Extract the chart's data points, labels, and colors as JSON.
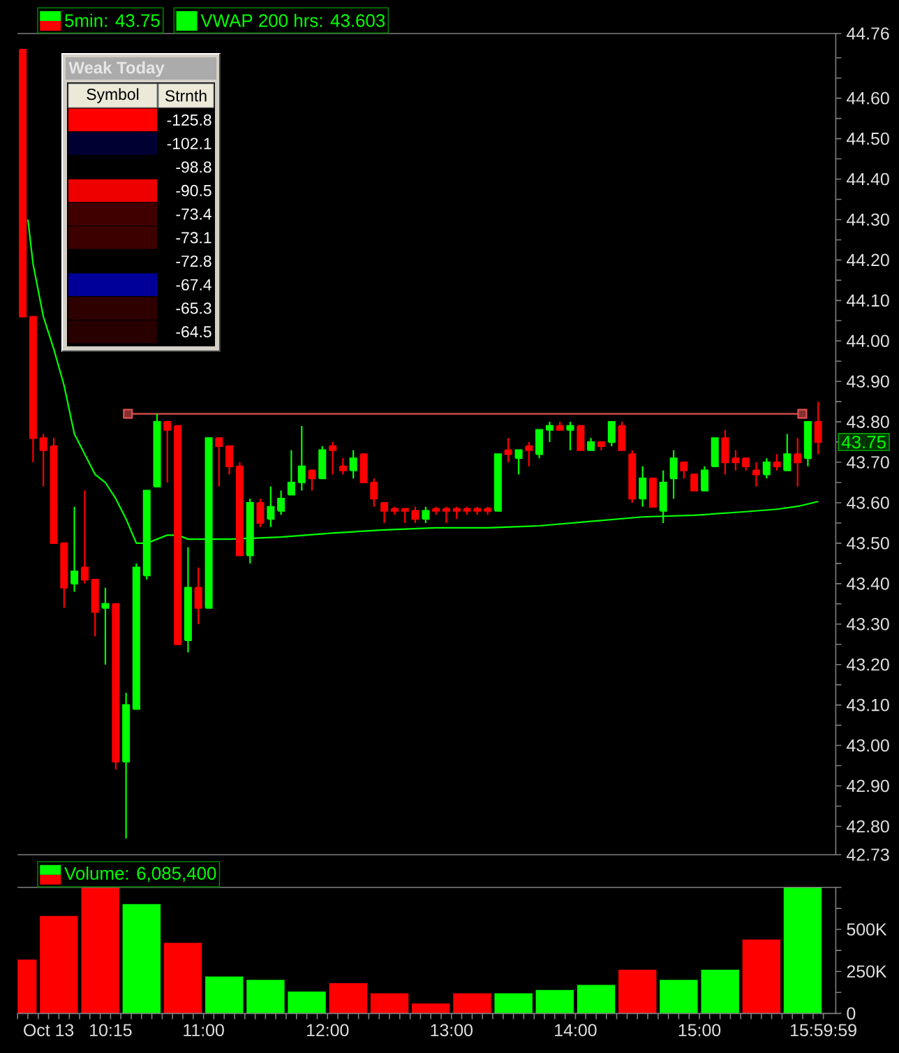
{
  "chart_data": [
    {
      "type": "candlestick",
      "series": [
        {
          "name": "5min: 43.75",
          "ohlc": [
            [
              44.72,
              44.72,
              44.06,
              44.06
            ],
            [
              44.06,
              44.06,
              43.7,
              43.76
            ],
            [
              43.76,
              43.77,
              43.64,
              43.73
            ],
            [
              43.74,
              43.76,
              43.5,
              43.5
            ],
            [
              43.5,
              43.5,
              43.34,
              43.39
            ],
            [
              43.4,
              43.59,
              43.38,
              43.43
            ],
            [
              43.44,
              43.63,
              43.4,
              43.41
            ],
            [
              43.41,
              43.41,
              43.27,
              43.33
            ],
            [
              43.34,
              43.39,
              43.2,
              43.35
            ],
            [
              43.35,
              43.35,
              42.94,
              42.96
            ],
            [
              42.96,
              43.13,
              42.77,
              43.1
            ],
            [
              43.09,
              43.45,
              43.09,
              43.44
            ],
            [
              43.42,
              43.63,
              43.41,
              43.63
            ],
            [
              43.64,
              43.82,
              43.64,
              43.8
            ],
            [
              43.8,
              43.8,
              43.65,
              43.78
            ],
            [
              43.79,
              43.79,
              43.25,
              43.25
            ],
            [
              43.26,
              43.49,
              43.23,
              43.39
            ],
            [
              43.39,
              43.44,
              43.3,
              43.34
            ],
            [
              43.34,
              43.76,
              43.34,
              43.76
            ],
            [
              43.76,
              43.76,
              43.64,
              43.74
            ],
            [
              43.74,
              43.74,
              43.67,
              43.69
            ],
            [
              43.69,
              43.7,
              43.47,
              43.47
            ],
            [
              43.47,
              43.61,
              43.45,
              43.6
            ],
            [
              43.6,
              43.61,
              43.54,
              43.55
            ],
            [
              43.56,
              43.64,
              43.54,
              43.59
            ],
            [
              43.58,
              43.63,
              43.57,
              43.61
            ],
            [
              43.62,
              43.73,
              43.62,
              43.65
            ],
            [
              43.65,
              43.79,
              43.63,
              43.69
            ],
            [
              43.68,
              43.68,
              43.63,
              43.66
            ],
            [
              43.66,
              43.74,
              43.66,
              43.73
            ],
            [
              43.74,
              43.75,
              43.67,
              43.73
            ],
            [
              43.69,
              43.71,
              43.67,
              43.68
            ],
            [
              43.68,
              43.73,
              43.66,
              43.71
            ],
            [
              43.72,
              43.72,
              43.65,
              43.65
            ],
            [
              43.65,
              43.66,
              43.59,
              43.61
            ],
            [
              43.6,
              43.6,
              43.55,
              43.58
            ],
            [
              43.585,
              43.59,
              43.57,
              43.58
            ],
            [
              43.585,
              43.585,
              43.55,
              43.58
            ],
            [
              43.58,
              43.59,
              43.55,
              43.56
            ],
            [
              43.56,
              43.59,
              43.55,
              43.58
            ],
            [
              43.585,
              43.59,
              43.57,
              43.58
            ],
            [
              43.585,
              43.59,
              43.55,
              43.58
            ],
            [
              43.585,
              43.59,
              43.56,
              43.58
            ],
            [
              43.585,
              43.59,
              43.57,
              43.58
            ],
            [
              43.585,
              43.59,
              43.57,
              43.58
            ],
            [
              43.585,
              43.59,
              43.57,
              43.58
            ],
            [
              43.58,
              43.72,
              43.58,
              43.72
            ],
            [
              43.73,
              43.76,
              43.7,
              43.72
            ],
            [
              43.71,
              43.73,
              43.67,
              43.73
            ],
            [
              43.74,
              43.75,
              43.69,
              43.73
            ],
            [
              43.72,
              43.78,
              43.71,
              43.78
            ],
            [
              43.78,
              43.8,
              43.75,
              43.79
            ],
            [
              43.79,
              43.8,
              43.78,
              43.78
            ],
            [
              43.78,
              43.8,
              43.73,
              43.79
            ],
            [
              43.79,
              43.79,
              43.73,
              43.73
            ],
            [
              43.73,
              43.76,
              43.73,
              43.75
            ],
            [
              43.75,
              43.75,
              43.73,
              43.74
            ],
            [
              43.75,
              43.8,
              43.74,
              43.8
            ],
            [
              43.79,
              43.8,
              43.73,
              43.73
            ],
            [
              43.72,
              43.73,
              43.6,
              43.61
            ],
            [
              43.61,
              43.69,
              43.59,
              43.66
            ],
            [
              43.66,
              43.66,
              43.59,
              43.59
            ],
            [
              43.58,
              43.68,
              43.55,
              43.65
            ],
            [
              43.66,
              43.73,
              43.61,
              43.71
            ],
            [
              43.7,
              43.7,
              43.66,
              43.68
            ],
            [
              43.67,
              43.67,
              43.63,
              43.63
            ],
            [
              43.63,
              43.69,
              43.63,
              43.68
            ],
            [
              43.69,
              43.76,
              43.69,
              43.76
            ],
            [
              43.76,
              43.78,
              43.67,
              43.7
            ],
            [
              43.71,
              43.73,
              43.68,
              43.7
            ],
            [
              43.71,
              43.71,
              43.68,
              43.69
            ],
            [
              43.68,
              43.7,
              43.64,
              43.67
            ],
            [
              43.67,
              43.71,
              43.66,
              43.7
            ],
            [
              43.7,
              43.72,
              43.68,
              43.69
            ],
            [
              43.68,
              43.77,
              43.68,
              43.72
            ],
            [
              43.72,
              43.76,
              43.64,
              43.7
            ],
            [
              43.71,
              43.8,
              43.69,
              43.8
            ],
            [
              43.8,
              43.85,
              43.72,
              43.75
            ]
          ],
          "colors": [
            "#ff0000",
            "#ff0000",
            "#ff0000",
            "#ff0000",
            "#ff0000",
            "#00ff00",
            "#ff0000",
            "#ff0000",
            "#00ff00",
            "#ff0000",
            "#00ff00",
            "#00ff00",
            "#00ff00",
            "#00ff00",
            "#ff0000",
            "#ff0000",
            "#00ff00",
            "#ff0000",
            "#00ff00",
            "#ff0000",
            "#ff0000",
            "#ff0000",
            "#00ff00",
            "#ff0000",
            "#00ff00",
            "#00ff00",
            "#00ff00",
            "#00ff00",
            "#ff0000",
            "#00ff00",
            "#ff0000",
            "#ff0000",
            "#00ff00",
            "#ff0000",
            "#ff0000",
            "#ff0000",
            "#ff0000",
            "#ff0000",
            "#ff0000",
            "#00ff00",
            "#ff0000",
            "#ff0000",
            "#ff0000",
            "#ff0000",
            "#ff0000",
            "#ff0000",
            "#00ff00",
            "#ff0000",
            "#00ff00",
            "#ff0000",
            "#00ff00",
            "#00ff00",
            "#ff0000",
            "#00ff00",
            "#ff0000",
            "#00ff00",
            "#ff0000",
            "#00ff00",
            "#ff0000",
            "#ff0000",
            "#00ff00",
            "#ff0000",
            "#00ff00",
            "#00ff00",
            "#ff0000",
            "#ff0000",
            "#00ff00",
            "#00ff00",
            "#ff0000",
            "#ff0000",
            "#ff0000",
            "#ff0000",
            "#00ff00",
            "#ff0000",
            "#00ff00",
            "#ff0000",
            "#00ff00",
            "#ff0000"
          ]
        },
        {
          "name": "VWAP 200 hrs: 43.603",
          "type": "line",
          "color": "#00ff00",
          "x": [
            9.583,
            9.625,
            9.708,
            9.792,
            9.875,
            9.958,
            10.042,
            10.125,
            10.208,
            10.292,
            10.375,
            10.458,
            10.542,
            10.625,
            10.708,
            10.792,
            10.875,
            11.208,
            11.625,
            12.042,
            12.458,
            12.875,
            13.292,
            13.708,
            14.125,
            14.542,
            14.958,
            15.375,
            15.625,
            15.792,
            15.958
          ],
          "values": [
            44.3,
            44.19,
            44.06,
            43.98,
            43.89,
            43.77,
            43.72,
            43.67,
            43.65,
            43.61,
            43.56,
            43.5,
            43.5,
            43.51,
            43.52,
            43.52,
            43.51,
            43.51,
            43.515,
            43.525,
            43.533,
            43.538,
            43.538,
            43.543,
            43.554,
            43.565,
            43.569,
            43.578,
            43.584,
            43.591,
            43.603
          ]
        },
        {
          "type": "line",
          "color": "#e05050",
          "marker": "square",
          "x": [
            10.39,
            15.83
          ],
          "values": [
            43.82,
            43.82
          ]
        }
      ],
      "x": [
        9.542,
        9.625,
        9.708,
        9.792,
        9.875,
        9.958,
        10.042,
        10.125,
        10.208,
        10.292,
        10.375,
        10.458,
        10.542,
        10.625,
        10.708,
        10.792,
        10.875,
        10.958,
        11.042,
        11.125,
        11.208,
        11.292,
        11.375,
        11.458,
        11.542,
        11.625,
        11.708,
        11.792,
        11.875,
        11.958,
        12.042,
        12.125,
        12.208,
        12.292,
        12.375,
        12.458,
        12.542,
        12.625,
        12.708,
        12.792,
        12.875,
        12.958,
        13.042,
        13.125,
        13.208,
        13.292,
        13.375,
        13.458,
        13.542,
        13.625,
        13.708,
        13.792,
        13.875,
        13.958,
        14.042,
        14.125,
        14.208,
        14.292,
        14.375,
        14.458,
        14.542,
        14.625,
        14.708,
        14.792,
        14.875,
        14.958,
        15.042,
        15.125,
        15.208,
        15.292,
        15.375,
        15.458,
        15.542,
        15.625,
        15.708,
        15.792,
        15.875,
        15.958
      ],
      "xlim": [
        9.5,
        16.1
      ],
      "ylim": [
        42.73,
        44.76
      ],
      "yticks": [
        {
          "value": 42.73,
          "label": "42.73"
        },
        {
          "value": 42.8,
          "label": "42.80"
        },
        {
          "value": 42.85,
          "label": null
        },
        {
          "value": 42.9,
          "label": "42.90"
        },
        {
          "value": 42.95,
          "label": null
        },
        {
          "value": 43,
          "label": "43.00"
        },
        {
          "value": 43.05,
          "label": null
        },
        {
          "value": 43.1,
          "label": "43.10"
        },
        {
          "value": 43.15,
          "label": null
        },
        {
          "value": 43.2,
          "label": "43.20"
        },
        {
          "value": 43.25,
          "label": null
        },
        {
          "value": 43.3,
          "label": "43.30"
        },
        {
          "value": 43.35,
          "label": null
        },
        {
          "value": 43.4,
          "label": "43.40"
        },
        {
          "value": 43.45,
          "label": null
        },
        {
          "value": 43.5,
          "label": "43.50"
        },
        {
          "value": 43.55,
          "label": null
        },
        {
          "value": 43.6,
          "label": "43.60"
        },
        {
          "value": 43.65,
          "label": null
        },
        {
          "value": 43.7,
          "label": "43.70"
        },
        {
          "value": 43.75,
          "label": null
        },
        {
          "value": 43.8,
          "label": "43.80"
        },
        {
          "value": 43.85,
          "label": null
        },
        {
          "value": 43.9,
          "label": "43.90"
        },
        {
          "value": 43.95,
          "label": null
        },
        {
          "value": 44,
          "label": "44.00"
        },
        {
          "value": 44.05,
          "label": null
        },
        {
          "value": 44.1,
          "label": "44.10"
        },
        {
          "value": 44.15,
          "label": null
        },
        {
          "value": 44.2,
          "label": "44.20"
        },
        {
          "value": 44.25,
          "label": null
        },
        {
          "value": 44.3,
          "label": "44.30"
        },
        {
          "value": 44.35,
          "label": null
        },
        {
          "value": 44.4,
          "label": "44.40"
        },
        {
          "value": 44.45,
          "label": null
        },
        {
          "value": 44.5,
          "label": "44.50"
        },
        {
          "value": 44.55,
          "label": null
        },
        {
          "value": 44.6,
          "label": "44.60"
        },
        {
          "value": 44.65,
          "label": null
        },
        {
          "value": 44.7,
          "label": null
        },
        {
          "value": 44.76,
          "label": "44.76"
        }
      ],
      "tick_labels": "y",
      "legend": "top left",
      "annotations": [
        {
          "text": "43.75",
          "y": 43.75
        }
      ]
    },
    {
      "type": "other",
      "title": "Weak Today",
      "categories": [
        null,
        null,
        null,
        null,
        null,
        null,
        null,
        null,
        null,
        null
      ],
      "values": [
        -125.8,
        -102.1,
        -98.8,
        -90.5,
        -73.4,
        -73.1,
        -72.8,
        -67.4,
        -65.3,
        -64.5
      ],
      "colors": [
        "#ff0000",
        "#000033",
        "#100000",
        "#ee0000",
        "#400000",
        "#3d0000",
        "#000000",
        "#000099",
        "#2f0000",
        "#280000"
      ],
      "data_labels": true,
      "annotations": [
        "Symbol",
        "Strnth"
      ]
    },
    {
      "type": "bar",
      "series": [
        {
          "name": "Volume: 6,085,400",
          "values": [
            320000,
            580000,
            750000,
            650000,
            420000,
            220000,
            200000,
            130000,
            180000,
            120000,
            60000,
            120000,
            120000,
            140000,
            170000,
            260000,
            200000,
            260000,
            440000,
            750000
          ],
          "colors": [
            "#ff0000",
            "#ff0000",
            "#ff0000",
            "#00ff00",
            "#ff0000",
            "#00ff00",
            "#00ff00",
            "#00ff00",
            "#ff0000",
            "#ff0000",
            "#ff0000",
            "#ff0000",
            "#00ff00",
            "#00ff00",
            "#00ff00",
            "#ff0000",
            "#00ff00",
            "#00ff00",
            "#ff0000",
            "#00ff00"
          ]
        }
      ],
      "x": [
        9.5,
        9.833,
        10.167,
        10.5,
        10.833,
        11.167,
        11.5,
        11.833,
        12.167,
        12.5,
        12.833,
        13.167,
        13.5,
        13.833,
        14.167,
        14.5,
        14.833,
        15.167,
        15.5,
        15.833
      ],
      "xlim": [
        9.5,
        16.1
      ],
      "xticks": [
        {
          "value": 9.5,
          "label": null
        },
        {
          "value": 9.583,
          "label": null
        },
        {
          "value": 9.667,
          "label": null
        },
        {
          "value": 9.75,
          "label": "Oct 13"
        },
        {
          "value": 9.833,
          "label": null
        },
        {
          "value": 9.917,
          "label": null
        },
        {
          "value": 10,
          "label": null
        },
        {
          "value": 10.083,
          "label": null
        },
        {
          "value": 10.167,
          "label": null
        },
        {
          "value": 10.25,
          "label": "10:15"
        },
        {
          "value": 10.333,
          "label": null
        },
        {
          "value": 10.417,
          "label": null
        },
        {
          "value": 10.5,
          "label": null
        },
        {
          "value": 10.583,
          "label": null
        },
        {
          "value": 10.667,
          "label": null
        },
        {
          "value": 10.75,
          "label": null
        },
        {
          "value": 10.833,
          "label": null
        },
        {
          "value": 10.917,
          "label": null
        },
        {
          "value": 11,
          "label": "11:00"
        },
        {
          "value": 11.083,
          "label": null
        },
        {
          "value": 11.167,
          "label": null
        },
        {
          "value": 11.25,
          "label": null
        },
        {
          "value": 11.333,
          "label": null
        },
        {
          "value": 11.417,
          "label": null
        },
        {
          "value": 11.5,
          "label": null
        },
        {
          "value": 11.583,
          "label": null
        },
        {
          "value": 11.667,
          "label": null
        },
        {
          "value": 11.75,
          "label": null
        },
        {
          "value": 11.833,
          "label": null
        },
        {
          "value": 11.917,
          "label": null
        },
        {
          "value": 12,
          "label": "12:00"
        },
        {
          "value": 12.083,
          "label": null
        },
        {
          "value": 12.167,
          "label": null
        },
        {
          "value": 12.25,
          "label": null
        },
        {
          "value": 12.333,
          "label": null
        },
        {
          "value": 12.417,
          "label": null
        },
        {
          "value": 12.5,
          "label": null
        },
        {
          "value": 12.583,
          "label": null
        },
        {
          "value": 12.667,
          "label": null
        },
        {
          "value": 12.75,
          "label": null
        },
        {
          "value": 12.833,
          "label": null
        },
        {
          "value": 12.917,
          "label": null
        },
        {
          "value": 13,
          "label": "13:00"
        },
        {
          "value": 13.083,
          "label": null
        },
        {
          "value": 13.167,
          "label": null
        },
        {
          "value": 13.25,
          "label": null
        },
        {
          "value": 13.333,
          "label": null
        },
        {
          "value": 13.417,
          "label": null
        },
        {
          "value": 13.5,
          "label": null
        },
        {
          "value": 13.583,
          "label": null
        },
        {
          "value": 13.667,
          "label": null
        },
        {
          "value": 13.75,
          "label": null
        },
        {
          "value": 13.833,
          "label": null
        },
        {
          "value": 13.917,
          "label": null
        },
        {
          "value": 14,
          "label": "14:00"
        },
        {
          "value": 14.083,
          "label": null
        },
        {
          "value": 14.167,
          "label": null
        },
        {
          "value": 14.25,
          "label": null
        },
        {
          "value": 14.333,
          "label": null
        },
        {
          "value": 14.417,
          "label": null
        },
        {
          "value": 14.5,
          "label": null
        },
        {
          "value": 14.583,
          "label": null
        },
        {
          "value": 14.667,
          "label": null
        },
        {
          "value": 14.75,
          "label": null
        },
        {
          "value": 14.833,
          "label": null
        },
        {
          "value": 14.917,
          "label": null
        },
        {
          "value": 15,
          "label": "15:00"
        },
        {
          "value": 15.083,
          "label": null
        },
        {
          "value": 15.167,
          "label": null
        },
        {
          "value": 15.25,
          "label": null
        },
        {
          "value": 15.333,
          "label": null
        },
        {
          "value": 15.417,
          "label": null
        },
        {
          "value": 15.5,
          "label": null
        },
        {
          "value": 15.583,
          "label": null
        },
        {
          "value": 15.667,
          "label": null
        },
        {
          "value": 15.75,
          "label": null
        },
        {
          "value": 15.833,
          "label": null
        },
        {
          "value": 15.917,
          "label": null
        },
        {
          "value": 15.9997,
          "label": "15:59:59"
        }
      ],
      "ylim": [
        0,
        750000
      ],
      "yticks": [
        0,
        {
          "value": 125000,
          "label": null
        },
        {
          "value": 250000,
          "label": "250K"
        },
        {
          "value": 375000,
          "label": null
        },
        {
          "value": 500000,
          "label": "500K"
        },
        {
          "value": 625000,
          "label": null
        },
        {
          "value": 750000,
          "label": null
        }
      ],
      "legend": "top left"
    }
  ]
}
